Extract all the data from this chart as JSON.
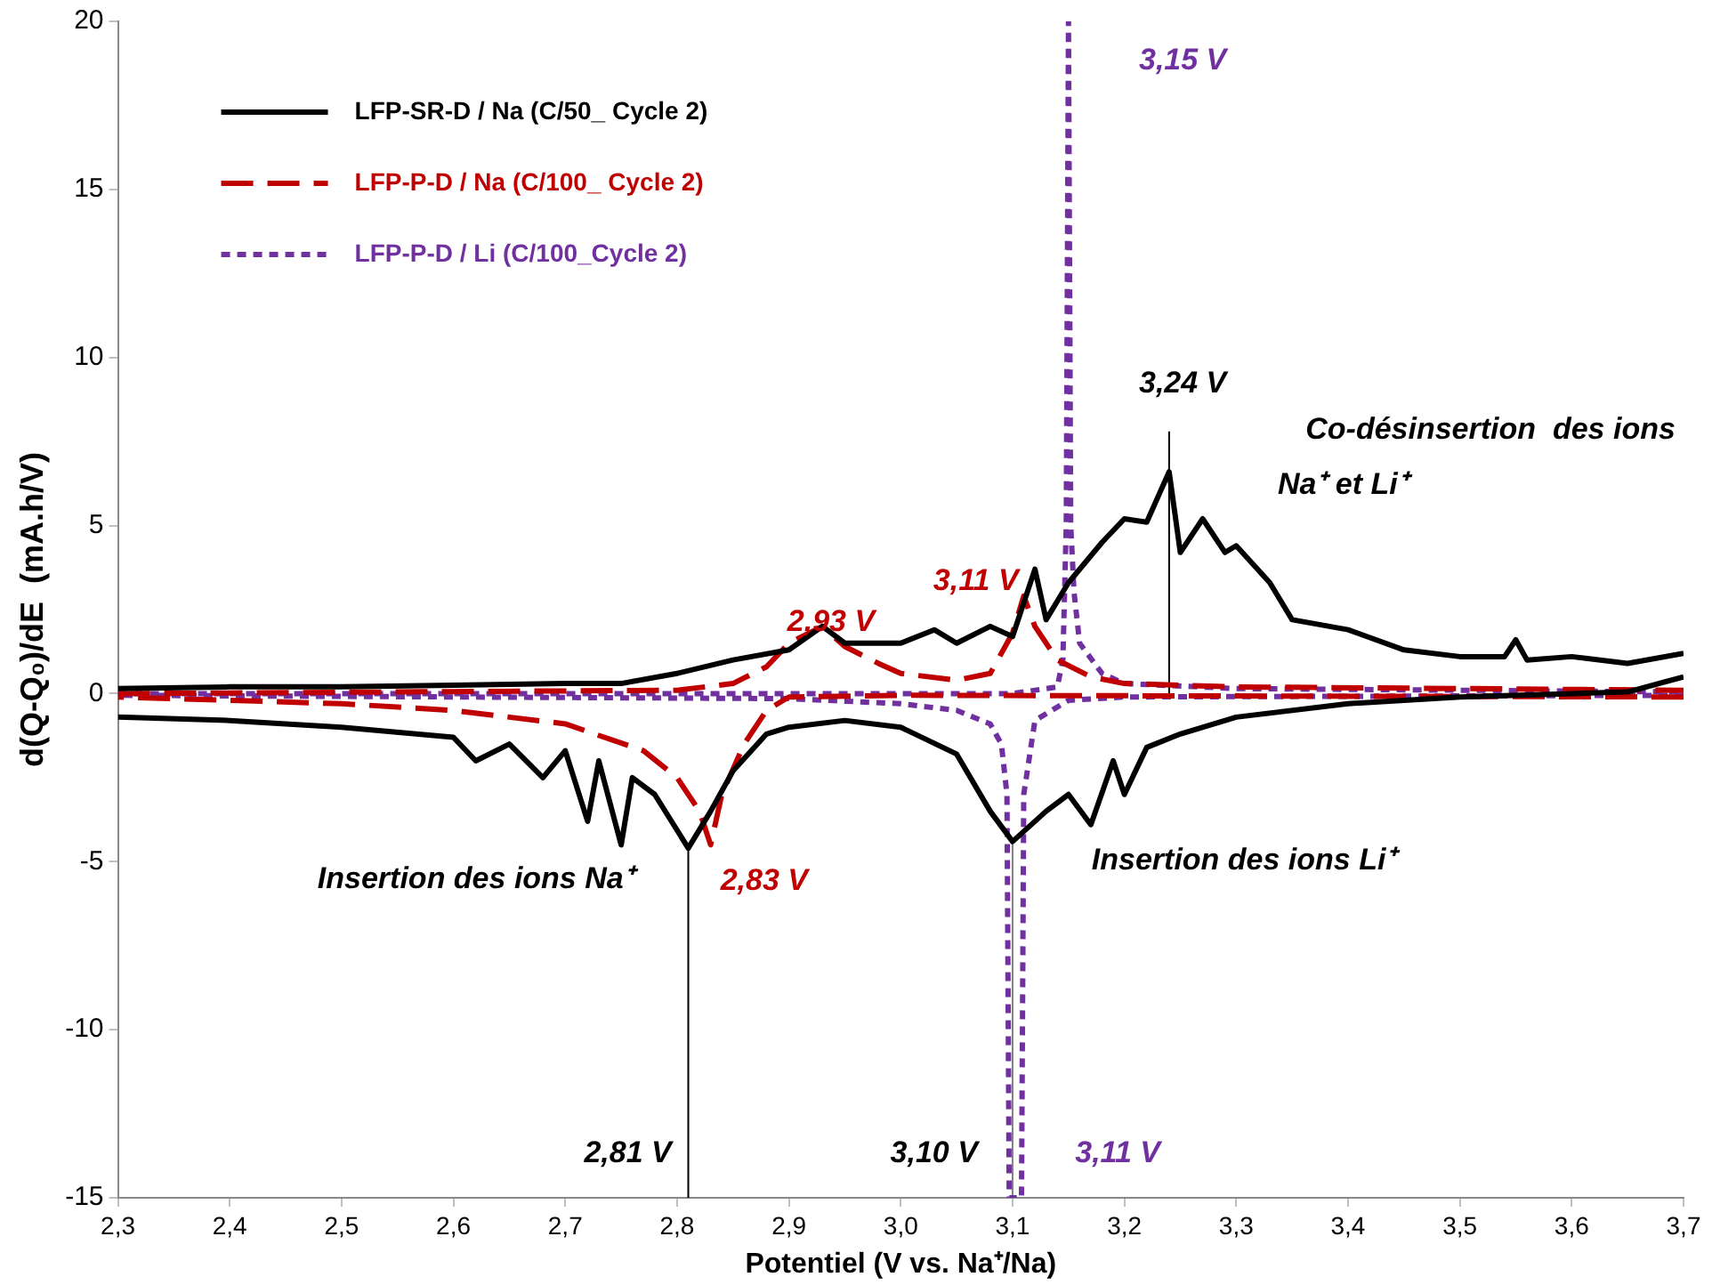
{
  "chart_data": {
    "type": "line",
    "xlabel": "Potentiel (V vs. Na⁺/Na)",
    "ylabel": "d(Q-Q₀)/dE  (mA.h/V)",
    "xlim": [
      2.3,
      3.7
    ],
    "ylim": [
      -15,
      20
    ],
    "xticks": [
      {
        "value": 2.3,
        "label": "2,3"
      },
      {
        "value": 2.4,
        "label": "2,4"
      },
      {
        "value": 2.5,
        "label": "2,5"
      },
      {
        "value": 2.6,
        "label": "2,6"
      },
      {
        "value": 2.7,
        "label": "2,7"
      },
      {
        "value": 2.8,
        "label": "2,8"
      },
      {
        "value": 2.9,
        "label": "2,9"
      },
      {
        "value": 3.0,
        "label": "3,0"
      },
      {
        "value": 3.1,
        "label": "3,1"
      },
      {
        "value": 3.2,
        "label": "3,2"
      },
      {
        "value": 3.3,
        "label": "3,3"
      },
      {
        "value": 3.4,
        "label": "3,4"
      },
      {
        "value": 3.5,
        "label": "3,5"
      },
      {
        "value": 3.6,
        "label": "3,6"
      },
      {
        "value": 3.7,
        "label": "3,7"
      }
    ],
    "yticks": [
      -15,
      -10,
      -5,
      0,
      5,
      10,
      15,
      20
    ],
    "grid": false,
    "legend": "top left",
    "marker": "none",
    "series": [
      {
        "name": "LFP-SR-D / Na (C/50_ Cycle 2)",
        "color": "#000000",
        "line_style": "solid",
        "x": [
          2.3,
          2.4,
          2.5,
          2.6,
          2.7,
          2.75,
          2.8,
          2.85,
          2.9,
          2.93,
          2.95,
          3.0,
          3.03,
          3.05,
          3.08,
          3.1,
          3.12,
          3.13,
          3.15,
          3.18,
          3.2,
          3.22,
          3.24,
          3.25,
          3.27,
          3.29,
          3.3,
          3.33,
          3.35,
          3.4,
          3.45,
          3.5,
          3.54,
          3.55,
          3.56,
          3.6,
          3.65,
          3.7
        ],
        "values": [
          0.15,
          0.2,
          0.2,
          0.25,
          0.3,
          0.3,
          0.6,
          1.0,
          1.3,
          2.0,
          1.5,
          1.5,
          1.9,
          1.5,
          2.0,
          1.7,
          3.7,
          2.2,
          3.3,
          4.5,
          5.2,
          5.1,
          6.6,
          4.2,
          5.2,
          4.2,
          4.4,
          3.3,
          2.2,
          1.9,
          1.3,
          1.1,
          1.1,
          1.6,
          1.0,
          1.1,
          0.9,
          1.2
        ]
      },
      {
        "color": "#000000",
        "line_style": "solid",
        "x": [
          3.7,
          3.65,
          3.6,
          3.5,
          3.4,
          3.3,
          3.25,
          3.22,
          3.2,
          3.19,
          3.17,
          3.15,
          3.13,
          3.1,
          3.08,
          3.05,
          3.0,
          2.95,
          2.9,
          2.88,
          2.85,
          2.83,
          2.81,
          2.78,
          2.76,
          2.75,
          2.73,
          2.72,
          2.7,
          2.68,
          2.65,
          2.62,
          2.6,
          2.5,
          2.4,
          2.3
        ],
        "values": [
          0.5,
          0.05,
          0,
          -0.1,
          -0.3,
          -0.7,
          -1.2,
          -1.6,
          -3.0,
          -2.0,
          -3.9,
          -3.0,
          -3.5,
          -4.4,
          -3.5,
          -1.8,
          -1.0,
          -0.8,
          -1.0,
          -1.2,
          -2.3,
          -3.5,
          -4.6,
          -3.0,
          -2.5,
          -4.5,
          -2.0,
          -3.8,
          -1.7,
          -2.5,
          -1.5,
          -2.0,
          -1.3,
          -1.0,
          -0.8,
          -0.7
        ]
      },
      {
        "name": "LFP-P-D / Na (C/100_ Cycle 2)",
        "color": "#c00000",
        "line_style": "dashed",
        "x": [
          2.3,
          2.8,
          2.85,
          2.88,
          2.9,
          2.93,
          2.95,
          2.98,
          3.0,
          3.05,
          3.08,
          3.1,
          3.11,
          3.12,
          3.14,
          3.17,
          3.2,
          3.3,
          3.7
        ],
        "values": [
          0,
          0.1,
          0.3,
          0.8,
          1.5,
          2.0,
          1.4,
          0.9,
          0.6,
          0.4,
          0.6,
          1.8,
          2.9,
          2.0,
          1.0,
          0.5,
          0.3,
          0.2,
          0.1
        ]
      },
      {
        "color": "#c00000",
        "line_style": "dashed",
        "x": [
          3.7,
          3.0,
          2.9,
          2.88,
          2.86,
          2.84,
          2.83,
          2.82,
          2.8,
          2.77,
          2.7,
          2.6,
          2.5,
          2.3
        ],
        "values": [
          -0.1,
          -0.05,
          -0.1,
          -0.5,
          -1.5,
          -3.0,
          -4.5,
          -3.5,
          -2.5,
          -1.7,
          -0.9,
          -0.5,
          -0.3,
          -0.1
        ]
      },
      {
        "name": "LFP-P-D / Li (C/100_Cycle 2)",
        "color": "#7030a0",
        "line_style": "dotted",
        "x": [
          2.3,
          3.1,
          3.14,
          3.145,
          3.148,
          3.15,
          3.152,
          3.155,
          3.16,
          3.18,
          3.2,
          3.3,
          3.7
        ],
        "values": [
          0,
          0,
          0.2,
          1,
          5,
          20,
          5,
          3,
          1.5,
          0.6,
          0.3,
          0.15,
          0.05
        ]
      },
      {
        "color": "#7030a0",
        "line_style": "dotted",
        "x": [
          3.7,
          3.2,
          3.15,
          3.12,
          3.11,
          3.108,
          3.097,
          3.095,
          3.09,
          3.08,
          3.05,
          3.0,
          2.9,
          2.3
        ],
        "values": [
          -0.05,
          -0.1,
          -0.2,
          -0.8,
          -3,
          -15,
          -15,
          -3,
          -1.5,
          -0.9,
          -0.5,
          -0.3,
          -0.15,
          -0.05
        ]
      },
      {
        "color": "#000000",
        "line_style": "solid",
        "x": [
          2.81,
          2.81
        ],
        "values": [
          -15,
          -4.6
        ]
      },
      {
        "color": "#000000",
        "line_style": "solid",
        "x": [
          3.24,
          3.24
        ],
        "values": [
          0,
          7.8
        ]
      },
      {
        "color": "#808080",
        "line_style": "solid",
        "x": [
          3.1,
          3.1
        ],
        "values": [
          -15,
          -4.4
        ]
      }
    ],
    "annotations": [
      "3,15 V",
      "3,24 V",
      "Co-désinsertion  des ions",
      "Na⁺ et Li⁺",
      "2,93 V",
      "3,11 V",
      "Insertion des ions Na⁺",
      "2,83 V",
      "Insertion des ions Li⁺",
      "2,81 V",
      "3,10 V",
      "3,11 V"
    ]
  }
}
